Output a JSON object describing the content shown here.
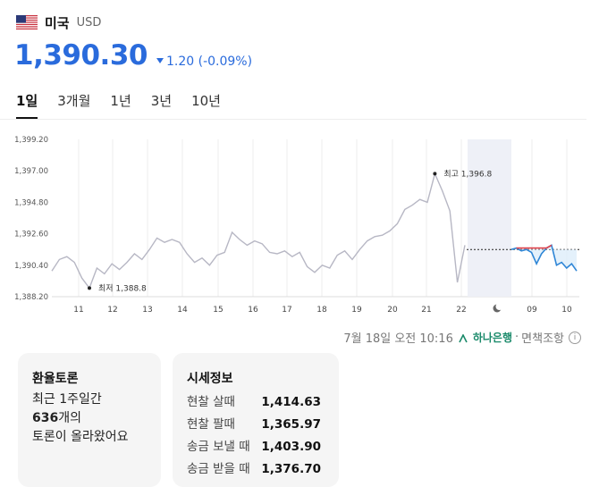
{
  "header": {
    "country": "미국",
    "currency": "USD",
    "flag_icon": "us-flag-icon"
  },
  "rate": {
    "value": "1,390.30",
    "change": "1.20 (-0.09%)",
    "direction": "down",
    "color": "#2a6bdc"
  },
  "tabs": [
    {
      "label": "1일",
      "active": true
    },
    {
      "label": "3개월",
      "active": false
    },
    {
      "label": "1년",
      "active": false
    },
    {
      "label": "3년",
      "active": false
    },
    {
      "label": "10년",
      "active": false
    }
  ],
  "chart_data": {
    "type": "line",
    "ylim": [
      1388.2,
      1399.2
    ],
    "y_ticks": [
      "1,399.20",
      "1,397.00",
      "1,394.80",
      "1,392.60",
      "1,390.40",
      "1,388.20"
    ],
    "x_ticks": [
      "11",
      "12",
      "13",
      "14",
      "15",
      "16",
      "17",
      "18",
      "19",
      "20",
      "21",
      "22",
      "09",
      "10"
    ],
    "annotations": {
      "high": "최고 1,396.8",
      "low": "최저 1,388.8"
    },
    "high_value": 1396.8,
    "low_value": 1388.8,
    "reference_value": 1391.5,
    "series": [
      {
        "values": [
          1390.0,
          1390.8,
          1391.0,
          1390.6,
          1389.5,
          1388.8,
          1390.2,
          1389.8,
          1390.5,
          1390.1,
          1390.6,
          1391.2,
          1390.8,
          1391.5,
          1392.3,
          1392.0,
          1392.2,
          1392.0,
          1391.2,
          1390.6,
          1390.9,
          1390.4,
          1391.1,
          1391.3,
          1392.7,
          1392.2,
          1391.8,
          1392.1,
          1391.9,
          1391.3,
          1391.2,
          1391.4,
          1391.0,
          1391.3,
          1390.3,
          1389.9,
          1390.4,
          1390.2,
          1391.1,
          1391.4,
          1390.8,
          1391.5,
          1392.1,
          1392.4,
          1392.5,
          1392.8,
          1393.3,
          1394.3,
          1394.6,
          1395.0,
          1394.8,
          1396.8,
          1395.6,
          1394.2,
          1389.2,
          1391.8
        ]
      },
      {
        "values": [
          1391.5,
          1391.6,
          1391.4,
          1391.5,
          1391.3,
          1390.5,
          1391.2,
          1391.6,
          1391.8,
          1390.4,
          1390.6,
          1390.2,
          1390.5,
          1390.0
        ]
      }
    ]
  },
  "timestamp": "7월 18일 오전 10:16",
  "source": {
    "bank": "하나은행",
    "sep": "·",
    "disclaimer": "면책조항",
    "info_icon": "info-icon"
  },
  "forum": {
    "title": "환율토론",
    "line1": "최근 1주일간",
    "count": "636",
    "count_suffix": "개의",
    "line3": "토론이 올라왔어요"
  },
  "market": {
    "title": "시세정보",
    "rows": [
      {
        "label": "현찰 살때",
        "value": "1,414.63"
      },
      {
        "label": "현찰 팔때",
        "value": "1,365.97"
      },
      {
        "label": "송금 보낼 때",
        "value": "1,403.90"
      },
      {
        "label": "송금 받을 때",
        "value": "1,376.70"
      }
    ]
  },
  "colors": {
    "accent": "#2a6bdc",
    "hist_line": "#b7b7c4",
    "live_line": "#2f86d6",
    "up": "#e0424b",
    "band": "#eef0f7"
  }
}
